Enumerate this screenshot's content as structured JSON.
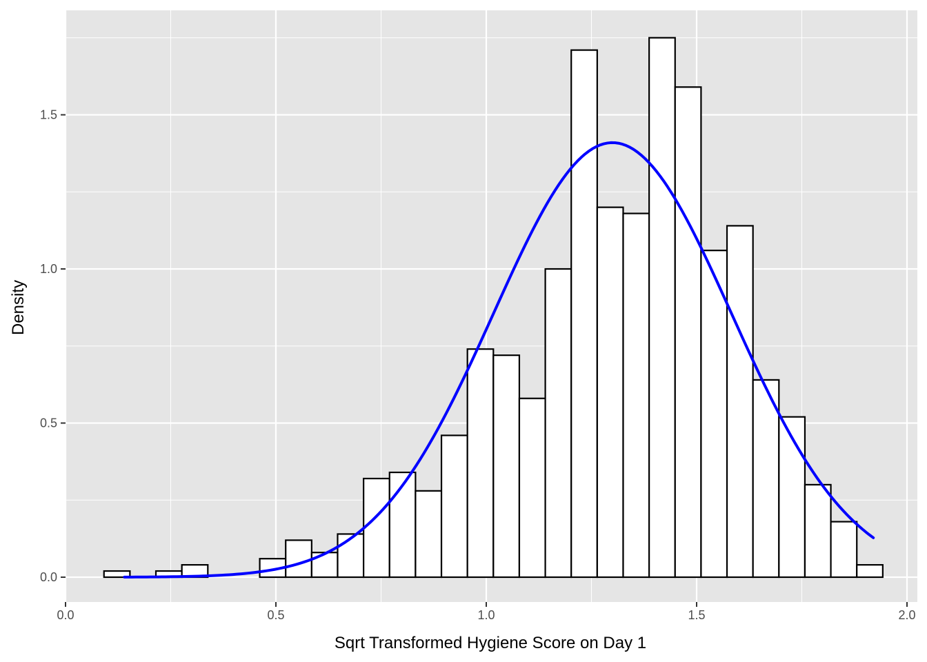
{
  "chart_data": {
    "type": "bar",
    "title": "",
    "xlabel": "Sqrt Transformed Hygiene Score on Day 1",
    "ylabel": "Density",
    "xlim": [
      0,
      2
    ],
    "ylim": [
      0,
      1.75
    ],
    "x_ticks": [
      0.0,
      0.5,
      1.0,
      1.5,
      2.0
    ],
    "x_tick_labels": [
      "0.0",
      "0.5",
      "1.0",
      "1.5",
      "2.0"
    ],
    "y_ticks": [
      0.0,
      0.5,
      1.0,
      1.5
    ],
    "y_tick_labels": [
      "0.0",
      "0.5",
      "1.0",
      "1.5"
    ],
    "grid": true,
    "panel_background": "#e5e5e5",
    "grid_color": "#ffffff",
    "bar_fill": "#ffffff",
    "bar_outline": "#000000",
    "curve_color": "#0000ff",
    "histogram": {
      "bin_width": 0.0617,
      "first_bin_left": 0.0914,
      "densities": [
        0.02,
        0.0,
        0.02,
        0.04,
        0.0,
        0.0,
        0.06,
        0.12,
        0.08,
        0.14,
        0.32,
        0.34,
        0.28,
        0.46,
        0.74,
        0.72,
        0.58,
        1.0,
        1.71,
        1.2,
        1.18,
        1.75,
        1.59,
        1.06,
        1.14,
        0.64,
        0.52,
        0.3,
        0.18,
        0.04
      ]
    },
    "normal_curve": {
      "mean": 1.3,
      "sd": 0.283,
      "x_range": [
        0.14,
        1.92
      ]
    }
  }
}
